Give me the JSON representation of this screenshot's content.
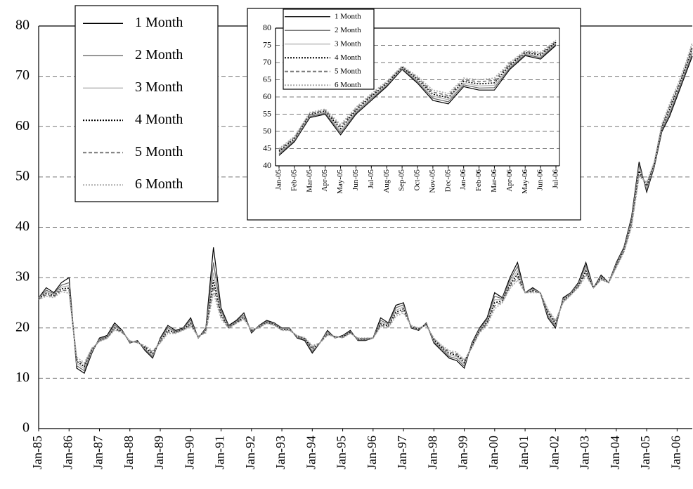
{
  "chart_data": [
    {
      "type": "line",
      "x": [
        "Jan-85",
        "Apr-85",
        "Jul-85",
        "Oct-85",
        "Jan-86",
        "Apr-86",
        "Jul-86",
        "Oct-86",
        "Jan-87",
        "Apr-87",
        "Jul-87",
        "Oct-87",
        "Jan-88",
        "Apr-88",
        "Jul-88",
        "Oct-88",
        "Jan-89",
        "Apr-89",
        "Jul-89",
        "Oct-89",
        "Jan-90",
        "Apr-90",
        "Jul-90",
        "Oct-90",
        "Jan-91",
        "Apr-91",
        "Jul-91",
        "Oct-91",
        "Jan-92",
        "Apr-92",
        "Jul-92",
        "Oct-92",
        "Jan-93",
        "Apr-93",
        "Jul-93",
        "Oct-93",
        "Jan-94",
        "Apr-94",
        "Jul-94",
        "Oct-94",
        "Jan-95",
        "Apr-95",
        "Jul-95",
        "Oct-95",
        "Jan-96",
        "Apr-96",
        "Jul-96",
        "Oct-96",
        "Jan-97",
        "Apr-97",
        "Jul-97",
        "Oct-97",
        "Jan-98",
        "Apr-98",
        "Jul-98",
        "Oct-98",
        "Jan-99",
        "Apr-99",
        "Jul-99",
        "Oct-99",
        "Jan-00",
        "Apr-00",
        "Jul-00",
        "Oct-00",
        "Jan-01",
        "Apr-01",
        "Jul-01",
        "Oct-01",
        "Jan-02",
        "Apr-02",
        "Jul-02",
        "Oct-02",
        "Jan-03",
        "Apr-03",
        "Jul-03",
        "Oct-03",
        "Jan-04",
        "Apr-04",
        "Jul-04",
        "Oct-04",
        "Jan-05",
        "Apr-05",
        "Jul-05",
        "Oct-05",
        "Jan-06",
        "Apr-06",
        "Jul-06"
      ],
      "xlim": [
        "Jan-85",
        "Jul-06"
      ],
      "xticks": [
        "Jan-85",
        "Jan-86",
        "Jan-87",
        "Jan-88",
        "Jan-89",
        "Jan-90",
        "Jan-91",
        "Jan-92",
        "Jan-93",
        "Jan-94",
        "Jan-95",
        "Jan-96",
        "Jan-97",
        "Jan-98",
        "Jan-99",
        "Jan-00",
        "Jan-01",
        "Jan-02",
        "Jan-03",
        "Jan-04",
        "Jan-05",
        "Jan-06"
      ],
      "ylim": [
        0,
        80
      ],
      "yticks": [
        0,
        10,
        20,
        30,
        40,
        50,
        60,
        70,
        80
      ],
      "grid": true,
      "legend": "upper-left",
      "series": [
        {
          "name": "1 Month",
          "color": "#000000",
          "dash": "solid",
          "values": [
            26,
            28,
            27,
            29,
            30,
            12,
            11,
            15,
            18,
            18.5,
            21,
            19.5,
            17,
            17.5,
            15.5,
            14,
            18,
            20.5,
            19.5,
            20,
            22,
            18,
            20,
            36,
            24,
            20.5,
            21.5,
            23,
            19,
            20.5,
            21.5,
            21,
            20,
            20,
            18,
            17.5,
            15,
            17,
            19.5,
            18,
            18.5,
            19.5,
            17.5,
            17.5,
            18,
            22,
            21,
            24.5,
            25,
            20,
            19.5,
            21,
            17,
            15.5,
            14,
            13.5,
            12,
            17,
            20,
            22,
            27,
            26,
            30,
            33,
            27,
            28,
            27,
            22,
            20,
            26,
            27,
            29,
            33,
            28,
            30.5,
            29,
            33,
            36,
            42,
            53,
            47,
            52,
            59,
            62,
            66,
            70,
            74
          ]
        },
        {
          "name": "2 Month",
          "color": "#666666",
          "dash": "solid",
          "values": [
            26,
            27.5,
            26.8,
            28.5,
            29,
            12.5,
            11.5,
            15.2,
            17.8,
            18.3,
            20.6,
            19.4,
            17.1,
            17.4,
            15.7,
            14.3,
            17.8,
            20.1,
            19.3,
            19.9,
            21.6,
            18,
            19.8,
            33,
            23.5,
            20.3,
            21.3,
            22.6,
            19.2,
            20.4,
            21.3,
            20.9,
            19.9,
            19.9,
            18.1,
            17.7,
            15.3,
            17,
            19.3,
            18,
            18.4,
            19.3,
            17.6,
            17.6,
            18,
            21.5,
            20.8,
            24,
            24.6,
            20.1,
            19.6,
            20.9,
            17.2,
            15.8,
            14.3,
            13.9,
            12.4,
            16.8,
            19.8,
            21.7,
            26.3,
            25.8,
            29.5,
            32.2,
            27,
            27.8,
            27,
            22.4,
            20.3,
            25.8,
            26.9,
            28.8,
            32.4,
            28,
            30.3,
            29,
            32.8,
            35.8,
            41.6,
            52.4,
            47.4,
            52.2,
            59.3,
            62.5,
            66.4,
            70.4,
            74.6
          ]
        },
        {
          "name": "3 Month",
          "color": "#b0b0b0",
          "dash": "solid",
          "values": [
            25.9,
            27.2,
            26.6,
            28.1,
            28.4,
            13,
            11.9,
            15.4,
            17.6,
            18.2,
            20.3,
            19.3,
            17.2,
            17.3,
            15.9,
            14.6,
            17.6,
            19.8,
            19.2,
            19.8,
            21.2,
            18.1,
            19.6,
            31,
            23,
            20.2,
            21.2,
            22.3,
            19.4,
            20.3,
            21.2,
            20.8,
            19.8,
            19.8,
            18.2,
            17.8,
            15.6,
            17,
            19.1,
            18.1,
            18.3,
            19.2,
            17.7,
            17.7,
            18,
            21.1,
            20.6,
            23.5,
            24.2,
            20.2,
            19.7,
            20.8,
            17.4,
            16,
            14.6,
            14.3,
            12.8,
            16.6,
            19.6,
            21.4,
            25.6,
            25.6,
            29,
            31.4,
            27,
            27.6,
            27,
            22.8,
            20.6,
            25.6,
            26.8,
            28.6,
            31.8,
            28,
            30.1,
            29,
            32.6,
            35.6,
            41.2,
            51.8,
            47.8,
            52.4,
            59.6,
            63,
            66.8,
            70.8,
            75.2
          ]
        },
        {
          "name": "4 Month",
          "color": "#000000",
          "dash": "dotted",
          "values": [
            25.8,
            26.9,
            26.4,
            27.8,
            27.9,
            13.4,
            12.3,
            15.6,
            17.5,
            18.1,
            20,
            19.2,
            17.3,
            17.2,
            16.1,
            14.9,
            17.4,
            19.5,
            19.1,
            19.7,
            20.9,
            18.2,
            19.4,
            29.5,
            22.6,
            20.1,
            21.1,
            22.1,
            19.5,
            20.2,
            21.1,
            20.7,
            19.7,
            19.7,
            18.3,
            17.9,
            15.9,
            17,
            18.9,
            18.2,
            18.2,
            19.1,
            17.8,
            17.8,
            18,
            20.8,
            20.4,
            23.1,
            23.8,
            20.3,
            19.8,
            20.7,
            17.6,
            16.2,
            14.9,
            14.6,
            13.1,
            16.4,
            19.4,
            21.1,
            25,
            25.4,
            28.6,
            30.7,
            27,
            27.4,
            27,
            23.1,
            20.9,
            25.4,
            26.7,
            28.4,
            31.3,
            28,
            29.9,
            29,
            32.4,
            35.4,
            40.8,
            51.2,
            48.2,
            52.6,
            59.9,
            63.5,
            67.2,
            71.2,
            75.7
          ]
        },
        {
          "name": "5 Month",
          "color": "#777777",
          "dash": "dashed",
          "values": [
            25.7,
            26.6,
            26.2,
            27.5,
            27.4,
            13.8,
            12.7,
            15.8,
            17.4,
            18,
            19.8,
            19.1,
            17.4,
            17.1,
            16.3,
            15.2,
            17.2,
            19.2,
            19,
            19.6,
            20.6,
            18.3,
            19.2,
            28.2,
            22.2,
            20,
            21,
            21.9,
            19.6,
            20.1,
            21,
            20.6,
            19.6,
            19.6,
            18.4,
            18,
            16.2,
            17,
            18.7,
            18.3,
            18.1,
            19,
            17.9,
            17.9,
            18,
            20.5,
            20.2,
            22.7,
            23.4,
            20.4,
            19.9,
            20.6,
            17.8,
            16.4,
            15.2,
            14.9,
            13.4,
            16.2,
            19.2,
            20.8,
            24.4,
            25.2,
            28.2,
            30.1,
            27,
            27.2,
            27,
            23.4,
            21.2,
            25.2,
            26.6,
            28.2,
            30.8,
            28,
            29.7,
            29,
            32.2,
            35.2,
            40.4,
            50.6,
            48.6,
            52.8,
            60.2,
            64,
            67.6,
            71.6,
            76.2
          ]
        },
        {
          "name": "6 Month",
          "color": "#aaaaaa",
          "dash": "dotted",
          "values": [
            25.6,
            26.3,
            26,
            27.2,
            26.9,
            14.2,
            13.1,
            16,
            17.3,
            17.9,
            19.6,
            19,
            17.5,
            17,
            16.5,
            15.5,
            17,
            18.9,
            18.9,
            19.5,
            20.3,
            18.4,
            19,
            27,
            21.8,
            19.9,
            20.9,
            21.7,
            19.7,
            20,
            20.9,
            20.5,
            19.5,
            19.5,
            18.5,
            18.1,
            16.5,
            17,
            18.5,
            18.4,
            18,
            18.9,
            18,
            18,
            18,
            20.2,
            20,
            22.3,
            23,
            20.5,
            20,
            20.5,
            18,
            16.6,
            15.5,
            15.2,
            13.7,
            16,
            19,
            20.5,
            23.8,
            25,
            27.8,
            29.5,
            27,
            27,
            27,
            23.7,
            21.5,
            25,
            26.5,
            28,
            30.3,
            28,
            29.5,
            29,
            32,
            35,
            40,
            50,
            49,
            53,
            60.5,
            64.5,
            68,
            72,
            76.7
          ]
        }
      ]
    },
    {
      "type": "line",
      "x": [
        "Jan-05",
        "Feb-05",
        "Mar-05",
        "Apr-05",
        "May-05",
        "Jun-05",
        "Jul-05",
        "Aug-05",
        "Sep-05",
        "Oct-05",
        "Nov-05",
        "Dec-05",
        "Jan-06",
        "Feb-06",
        "Mar-06",
        "Apr-06",
        "May-06",
        "Jun-06",
        "Jul-06"
      ],
      "ylim": [
        40,
        80
      ],
      "yticks": [
        40,
        45,
        50,
        55,
        60,
        65,
        70,
        75,
        80
      ],
      "grid": true,
      "legend": "upper-left",
      "series": [
        {
          "name": "1 Month",
          "color": "#000000",
          "dash": "solid",
          "values": [
            43,
            47,
            54,
            55,
            49,
            55,
            59,
            63,
            68,
            64,
            59,
            58,
            63,
            62,
            62,
            68,
            72,
            71,
            75
          ]
        },
        {
          "name": "2 Month",
          "color": "#666666",
          "dash": "solid",
          "values": [
            43.4,
            47.3,
            54.3,
            55.3,
            49.6,
            55.4,
            59.4,
            63.3,
            68.2,
            64.4,
            59.6,
            58.6,
            63.5,
            62.6,
            62.7,
            68.4,
            72.3,
            71.4,
            75.3
          ]
        },
        {
          "name": "3 Month",
          "color": "#b0b0b0",
          "dash": "solid",
          "values": [
            43.8,
            47.6,
            54.6,
            55.6,
            50.2,
            55.8,
            59.8,
            63.6,
            68.4,
            64.8,
            60.2,
            59.2,
            64,
            63.2,
            63.4,
            68.8,
            72.6,
            71.8,
            75.6
          ]
        },
        {
          "name": "4 Month",
          "color": "#000000",
          "dash": "dotted",
          "values": [
            44.2,
            47.9,
            54.9,
            55.9,
            50.8,
            56.2,
            60.2,
            63.9,
            68.6,
            65.2,
            60.8,
            59.8,
            64.5,
            63.8,
            64.1,
            69.2,
            72.9,
            72.2,
            75.9
          ]
        },
        {
          "name": "5 Month",
          "color": "#777777",
          "dash": "dashed",
          "values": [
            44.6,
            48.2,
            55.2,
            56.2,
            51.4,
            56.6,
            60.6,
            64.2,
            68.8,
            65.6,
            61.4,
            60.4,
            65,
            64.4,
            64.8,
            69.6,
            73.2,
            72.6,
            76.2
          ]
        },
        {
          "name": "6 Month",
          "color": "#aaaaaa",
          "dash": "dotted",
          "values": [
            45,
            48.5,
            55.5,
            56.5,
            52,
            57,
            61,
            64.5,
            69,
            66,
            62,
            61,
            65.5,
            65,
            65.5,
            70,
            73.5,
            73,
            76.5
          ]
        }
      ]
    }
  ]
}
